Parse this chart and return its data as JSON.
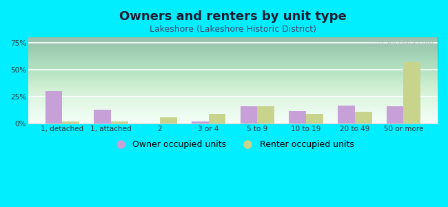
{
  "title": "Owners and renters by unit type",
  "subtitle": "Lakeshore (Lakeshore Historic District)",
  "categories": [
    "1, detached",
    "1, attached",
    "2",
    "3 or 4",
    "5 to 9",
    "10 to 19",
    "20 to 49",
    "50 or more"
  ],
  "owner_values": [
    30,
    13,
    0,
    2,
    16,
    12,
    17,
    16
  ],
  "renter_values": [
    2,
    2,
    6,
    9,
    16,
    9,
    11,
    57
  ],
  "owner_color": "#c8a0d8",
  "renter_color": "#c8d48c",
  "background_outer": "#00eeff",
  "ylim": [
    0,
    80
  ],
  "yticks": [
    0,
    25,
    50,
    75
  ],
  "ytick_labels": [
    "0%",
    "25%",
    "50%",
    "75%"
  ],
  "bar_width": 0.35,
  "legend_owner": "Owner occupied units",
  "legend_renter": "Renter occupied units",
  "title_fontsize": 13,
  "subtitle_fontsize": 9,
  "tick_fontsize": 7.5,
  "legend_fontsize": 9,
  "title_color": "#1a1a2e",
  "subtitle_color": "#444466",
  "watermark_color": "#b0c0c0",
  "grid_color": "#ffffff",
  "bg_top_color": "#f0fff8",
  "bg_bottom_color": "#c8e8c0"
}
